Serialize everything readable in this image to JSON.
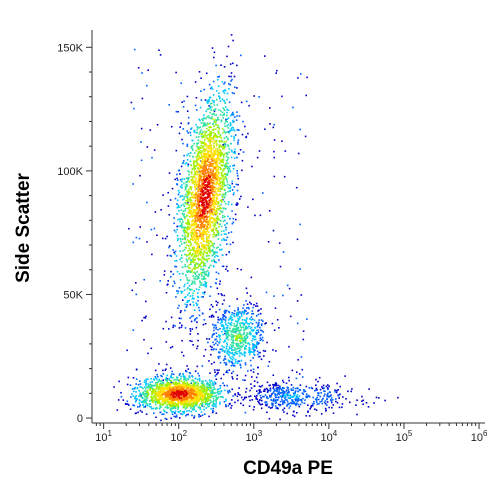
{
  "chart_data": {
    "type": "scatter",
    "plot_style": "flow cytometry density dot plot",
    "xlabel": "CD49a PE",
    "ylabel": "Side Scatter",
    "x_scale": "log",
    "y_scale": "linear",
    "xlim": [
      7,
      1200000
    ],
    "ylim": [
      -2000,
      157000
    ],
    "x_ticks": [
      {
        "value": 10,
        "base": "10",
        "exp": "1"
      },
      {
        "value": 100,
        "base": "10",
        "exp": "2"
      },
      {
        "value": 1000,
        "base": "10",
        "exp": "3"
      },
      {
        "value": 10000,
        "base": "10",
        "exp": "4"
      },
      {
        "value": 100000,
        "base": "10",
        "exp": "5"
      },
      {
        "value": 1000000,
        "base": "10",
        "exp": "6"
      }
    ],
    "y_ticks": [
      {
        "value": 0,
        "label": "0"
      },
      {
        "value": 50000,
        "label": "50K"
      },
      {
        "value": 100000,
        "label": "100K"
      },
      {
        "value": 150000,
        "label": "150K"
      }
    ],
    "density_colormap": [
      "#0000c8",
      "#0060ff",
      "#00c8ff",
      "#30e0a0",
      "#a0f000",
      "#ffe000",
      "#ff8000",
      "#e00000"
    ],
    "populations": [
      {
        "name": "low SSC cluster",
        "x_center": 100,
        "y_center": 10000,
        "x_spread_log": 0.28,
        "y_spread": 3500,
        "density": "high",
        "points": 1600
      },
      {
        "name": "high SSC cluster",
        "x_center": 220,
        "y_center": 90000,
        "x_spread_log": 0.16,
        "y_spread": 20000,
        "density": "high",
        "points": 2600
      },
      {
        "name": "mid SSC cluster",
        "x_center": 600,
        "y_center": 33000,
        "x_spread_log": 0.18,
        "y_spread": 7000,
        "density": "medium",
        "points": 650
      },
      {
        "name": "low SSC tail",
        "x_center": 3000,
        "y_center": 9000,
        "x_spread_log": 0.45,
        "y_spread": 3000,
        "density": "low",
        "points": 450
      }
    ],
    "grid": false,
    "legend": "none"
  }
}
